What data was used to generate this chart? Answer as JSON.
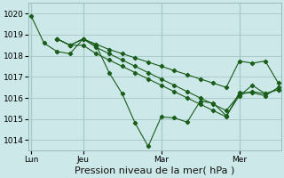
{
  "title": "Pression niveau de la mer( hPa )",
  "bg_color": "#cce8e8",
  "grid_color": "#aacccc",
  "line_color": "#1a5c1a",
  "ylim": [
    1013.5,
    1020.5
  ],
  "yticks": [
    1014,
    1015,
    1016,
    1017,
    1018,
    1019,
    1020
  ],
  "xtick_labels": [
    "Lun",
    "Jeu",
    "Mar",
    "Mer"
  ],
  "xtick_positions": [
    0,
    4,
    10,
    16
  ],
  "vline_positions": [
    0,
    4,
    10,
    16
  ],
  "series": [
    {
      "x": [
        0,
        1,
        2,
        3,
        4,
        5,
        6,
        7,
        8,
        9,
        10,
        11,
        12,
        13,
        14,
        15,
        16,
        17,
        18,
        19
      ],
      "y": [
        1019.9,
        1018.6,
        1018.2,
        1018.1,
        1018.8,
        1018.5,
        1017.2,
        1016.2,
        1014.8,
        1013.7,
        1015.1,
        1015.05,
        1014.85,
        1015.85,
        1015.75,
        1015.15,
        1016.1,
        1016.6,
        1016.2,
        1016.4
      ]
    },
    {
      "x": [
        2,
        3,
        4,
        5,
        6,
        7,
        8,
        9,
        10,
        11,
        12,
        13,
        14,
        15,
        16,
        17,
        18,
        19
      ],
      "y": [
        1018.8,
        1018.5,
        1018.8,
        1018.55,
        1018.3,
        1018.1,
        1017.9,
        1017.7,
        1017.5,
        1017.3,
        1017.1,
        1016.9,
        1016.7,
        1016.5,
        1017.75,
        1017.65,
        1017.75,
        1016.7
      ]
    },
    {
      "x": [
        2,
        3,
        4,
        5,
        6,
        7,
        8,
        9,
        10,
        11,
        12,
        13,
        14,
        15,
        16,
        17,
        18,
        19
      ],
      "y": [
        1018.8,
        1018.5,
        1018.8,
        1018.4,
        1018.1,
        1017.8,
        1017.5,
        1017.2,
        1016.9,
        1016.6,
        1016.3,
        1016.0,
        1015.7,
        1015.4,
        1016.15,
        1016.3,
        1016.2,
        1016.4
      ]
    },
    {
      "x": [
        2,
        3,
        4,
        5,
        6,
        7,
        8,
        9,
        10,
        11,
        12,
        13,
        14,
        15,
        16,
        17,
        18,
        19
      ],
      "y": [
        1018.8,
        1018.5,
        1018.5,
        1018.1,
        1017.8,
        1017.5,
        1017.2,
        1016.9,
        1016.6,
        1016.3,
        1016.0,
        1015.7,
        1015.4,
        1015.1,
        1016.25,
        1016.25,
        1016.1,
        1016.5
      ]
    }
  ],
  "n_total": 20,
  "tick_fontsize": 6.5,
  "xlabel_fontsize": 8
}
